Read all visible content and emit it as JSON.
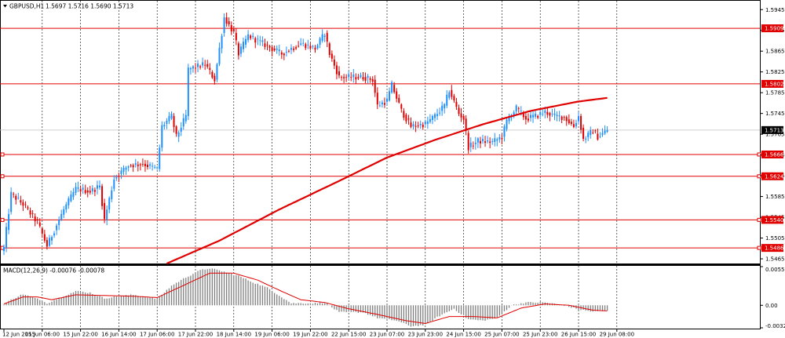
{
  "header": {
    "symbol_timeframe": "GBPUSD,H1",
    "ohlc": "1.5697 1.5716 1.5690 1.5713"
  },
  "macd": {
    "label": "MACD(12,26,9) -0.00076 -0.00078"
  },
  "colors": {
    "bull": "#1e90ff",
    "bear": "#e00000",
    "level_line": "#e00000",
    "ma_line": "#e00000",
    "grid": "#000000",
    "macd_hist": "#808080",
    "macd_signal": "#e00000"
  },
  "chart_data": [
    {
      "type": "candlestick",
      "symbol": "GBPUSD",
      "timeframe": "H1",
      "x_ticks": [
        "12 Jun 2015",
        "15 Jun 06:00",
        "15 Jun 22:00",
        "16 Jun 14:00",
        "17 Jun 06:00",
        "17 Jun 22:00",
        "18 Jun 14:00",
        "19 Jun 06:00",
        "19 Jun 22:00",
        "22 Jun 15:00",
        "23 Jun 07:00",
        "23 Jun 23:00",
        "24 Jun 15:00",
        "25 Jun 07:00",
        "25 Jun 23:00",
        "26 Jun 15:00",
        "29 Jun 08:00"
      ],
      "y_ticks": [
        "1.5945",
        "1.5905",
        "1.5865",
        "1.5825",
        "1.5785",
        "1.5745",
        "1.5705",
        "1.5665",
        "1.5625",
        "1.5585",
        "1.5545",
        "1.5505",
        "1.5465"
      ],
      "ylim": [
        1.5456,
        1.5962
      ],
      "current_price": "1.5713",
      "levels": [
        "1.5909",
        "1.5802",
        "1.5666",
        "1.5624",
        "1.5540",
        "1.5486"
      ],
      "anchors": [
        [
          0,
          1.5486
        ],
        [
          3,
          1.559
        ],
        [
          8,
          1.557
        ],
        [
          14,
          1.5535
        ],
        [
          18,
          1.549
        ],
        [
          25,
          1.556
        ],
        [
          30,
          1.56
        ],
        [
          36,
          1.5595
        ],
        [
          40,
          1.5605
        ],
        [
          42,
          1.554
        ],
        [
          46,
          1.562
        ],
        [
          52,
          1.5645
        ],
        [
          58,
          1.5648
        ],
        [
          64,
          1.5638
        ],
        [
          66,
          1.572
        ],
        [
          70,
          1.574
        ],
        [
          72,
          1.57
        ],
        [
          76,
          1.574
        ],
        [
          77,
          1.583
        ],
        [
          84,
          1.584
        ],
        [
          88,
          1.581
        ],
        [
          92,
          1.593
        ],
        [
          96,
          1.59
        ],
        [
          98,
          1.586
        ],
        [
          102,
          1.5895
        ],
        [
          108,
          1.588
        ],
        [
          116,
          1.586
        ],
        [
          124,
          1.588
        ],
        [
          130,
          1.587
        ],
        [
          134,
          1.59
        ],
        [
          136,
          1.586
        ],
        [
          140,
          1.5815
        ],
        [
          150,
          1.5815
        ],
        [
          154,
          1.581
        ],
        [
          156,
          1.576
        ],
        [
          160,
          1.577
        ],
        [
          162,
          1.58
        ],
        [
          166,
          1.575
        ],
        [
          170,
          1.572
        ],
        [
          176,
          1.5725
        ],
        [
          180,
          1.574
        ],
        [
          184,
          1.576
        ],
        [
          186,
          1.579
        ],
        [
          190,
          1.5745
        ],
        [
          192,
          1.5735
        ],
        [
          194,
          1.568
        ],
        [
          198,
          1.5692
        ],
        [
          204,
          1.569
        ],
        [
          208,
          1.57
        ],
        [
          210,
          1.573
        ],
        [
          214,
          1.5755
        ],
        [
          218,
          1.5735
        ],
        [
          222,
          1.574
        ],
        [
          226,
          1.5748
        ],
        [
          230,
          1.574
        ],
        [
          234,
          1.5738
        ],
        [
          238,
          1.572
        ],
        [
          240,
          1.574
        ],
        [
          242,
          1.5695
        ],
        [
          246,
          1.5712
        ],
        [
          248,
          1.57
        ],
        [
          252,
          1.5713
        ]
      ],
      "ma_line": {
        "name": "",
        "values": [
          [
            68,
            1.5456
          ],
          [
            90,
            1.55
          ],
          [
            115,
            1.556
          ],
          [
            140,
            1.5615
          ],
          [
            160,
            1.566
          ],
          [
            180,
            1.5694
          ],
          [
            200,
            1.5724
          ],
          [
            220,
            1.575
          ],
          [
            240,
            1.5768
          ],
          [
            252,
            1.5775
          ]
        ]
      },
      "macd_panel": {
        "label": "MACD(12,26,9) -0.00076 -0.00078",
        "y_ticks": [
          "0.00553",
          "0.00",
          "-0.00322"
        ],
        "ylim": [
          -0.00322,
          0.00553
        ],
        "histogram_anchors": [
          [
            0,
            0.0001
          ],
          [
            3,
            0.0008
          ],
          [
            8,
            0.0016
          ],
          [
            14,
            0.0009
          ],
          [
            18,
            0.0003
          ],
          [
            24,
            0.0012
          ],
          [
            30,
            0.002
          ],
          [
            36,
            0.0018
          ],
          [
            42,
            0.001
          ],
          [
            48,
            0.0013
          ],
          [
            54,
            0.0015
          ],
          [
            60,
            0.0012
          ],
          [
            64,
            0.0009
          ],
          [
            70,
            0.0028
          ],
          [
            76,
            0.004
          ],
          [
            82,
            0.005
          ],
          [
            86,
            0.0053
          ],
          [
            92,
            0.0048
          ],
          [
            98,
            0.0042
          ],
          [
            104,
            0.0033
          ],
          [
            110,
            0.0025
          ],
          [
            116,
            0.0012
          ],
          [
            120,
            0.0003
          ],
          [
            130,
            0.0003
          ],
          [
            134,
            0.0004
          ],
          [
            140,
            -0.001
          ],
          [
            150,
            -0.001
          ],
          [
            156,
            -0.0018
          ],
          [
            164,
            -0.0022
          ],
          [
            170,
            -0.003
          ],
          [
            176,
            -0.0028
          ],
          [
            182,
            -0.0015
          ],
          [
            188,
            -0.0005
          ],
          [
            194,
            -0.002
          ],
          [
            200,
            -0.0022
          ],
          [
            206,
            -0.0018
          ],
          [
            212,
            0.0
          ],
          [
            218,
            0.0004
          ],
          [
            226,
            0.0004
          ],
          [
            234,
            0.0
          ],
          [
            240,
            -0.0006
          ],
          [
            246,
            -0.0009
          ],
          [
            252,
            -0.0008
          ]
        ],
        "signal_anchors": [
          [
            0,
            0.0002
          ],
          [
            8,
            0.0012
          ],
          [
            14,
            0.0012
          ],
          [
            20,
            0.0008
          ],
          [
            30,
            0.0015
          ],
          [
            42,
            0.0014
          ],
          [
            54,
            0.0013
          ],
          [
            64,
            0.0011
          ],
          [
            76,
            0.003
          ],
          [
            86,
            0.0046
          ],
          [
            96,
            0.0046
          ],
          [
            106,
            0.0036
          ],
          [
            116,
            0.002
          ],
          [
            124,
            0.0008
          ],
          [
            134,
            0.0004
          ],
          [
            144,
            -0.0005
          ],
          [
            156,
            -0.0013
          ],
          [
            168,
            -0.0022
          ],
          [
            176,
            -0.0026
          ],
          [
            186,
            -0.0016
          ],
          [
            196,
            -0.0016
          ],
          [
            206,
            -0.0018
          ],
          [
            216,
            -0.0004
          ],
          [
            226,
            0.0002
          ],
          [
            236,
            0.0
          ],
          [
            246,
            -0.0007
          ],
          [
            252,
            -0.0008
          ]
        ]
      }
    }
  ]
}
